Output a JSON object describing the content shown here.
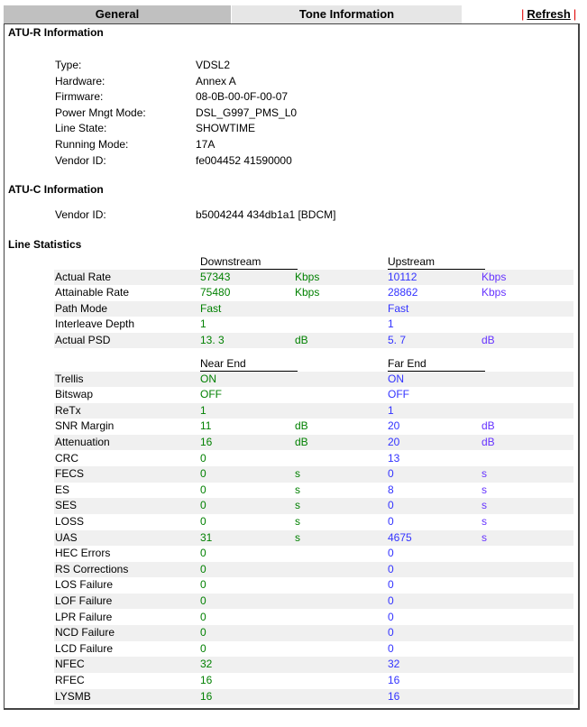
{
  "tabs": {
    "general": "General",
    "tone": "Tone Information",
    "refresh": "Refresh",
    "sep": "|"
  },
  "atur": {
    "title": "ATU-R Information",
    "rows": [
      [
        "Type:",
        "VDSL2"
      ],
      [
        "Hardware:",
        "Annex A"
      ],
      [
        "Firmware:",
        "08-0B-00-0F-00-07"
      ],
      [
        "Power Mngt Mode:",
        "DSL_G997_PMS_L0"
      ],
      [
        "Line State:",
        "SHOWTIME"
      ],
      [
        "Running Mode:",
        "17A"
      ],
      [
        "Vendor ID:",
        "fe004452 41590000"
      ]
    ]
  },
  "atuc": {
    "title": "ATU-C Information",
    "rows": [
      [
        "Vendor ID:",
        "b5004244 434db1a1 [BDCM]"
      ]
    ]
  },
  "stats": {
    "title": "Line Statistics",
    "head1": [
      "Downstream",
      "Upstream"
    ],
    "rows1": [
      [
        "Actual Rate",
        "57343",
        "Kbps",
        "10112",
        "Kbps"
      ],
      [
        "Attainable Rate",
        "75480",
        "Kbps",
        "28862",
        "Kbps"
      ],
      [
        "Path Mode",
        "Fast",
        "",
        "Fast",
        ""
      ],
      [
        "Interleave Depth",
        "1",
        "",
        "1",
        ""
      ],
      [
        "Actual PSD",
        "13. 3",
        "dB",
        "5. 7",
        "dB"
      ]
    ],
    "head2": [
      "Near End",
      "Far End"
    ],
    "rows2": [
      [
        "Trellis",
        "ON",
        "",
        "ON",
        ""
      ],
      [
        "Bitswap",
        "OFF",
        "",
        "OFF",
        ""
      ],
      [
        "ReTx",
        "1",
        "",
        "1",
        ""
      ],
      [
        "SNR Margin",
        "11",
        "dB",
        "20",
        "dB"
      ],
      [
        "Attenuation",
        "16",
        "dB",
        "20",
        "dB"
      ],
      [
        "CRC",
        "0",
        "",
        "13",
        ""
      ],
      [
        "FECS",
        "0",
        "s",
        "0",
        "s"
      ],
      [
        "ES",
        "0",
        "s",
        "8",
        "s"
      ],
      [
        "SES",
        "0",
        "s",
        "0",
        "s"
      ],
      [
        "LOSS",
        "0",
        "s",
        "0",
        "s"
      ],
      [
        "UAS",
        "31",
        "s",
        "4675",
        "s"
      ],
      [
        "HEC Errors",
        "0",
        "",
        "0",
        ""
      ],
      [
        "RS Corrections",
        "0",
        "",
        "0",
        ""
      ],
      [
        "LOS Failure",
        "0",
        "",
        "0",
        ""
      ],
      [
        "LOF Failure",
        "0",
        "",
        "0",
        ""
      ],
      [
        "LPR Failure",
        "0",
        "",
        "0",
        ""
      ],
      [
        "NCD Failure",
        "0",
        "",
        "0",
        ""
      ],
      [
        "LCD Failure",
        "0",
        "",
        "0",
        ""
      ],
      [
        "NFEC",
        "32",
        "",
        "32",
        ""
      ],
      [
        "RFEC",
        "16",
        "",
        "16",
        ""
      ],
      [
        "LYSMB",
        "16",
        "",
        "16",
        ""
      ]
    ]
  },
  "colors": {
    "near": "#008000",
    "far": "#3333ff",
    "far_unit": "#6633ff",
    "shade": "#f0f0f0"
  }
}
